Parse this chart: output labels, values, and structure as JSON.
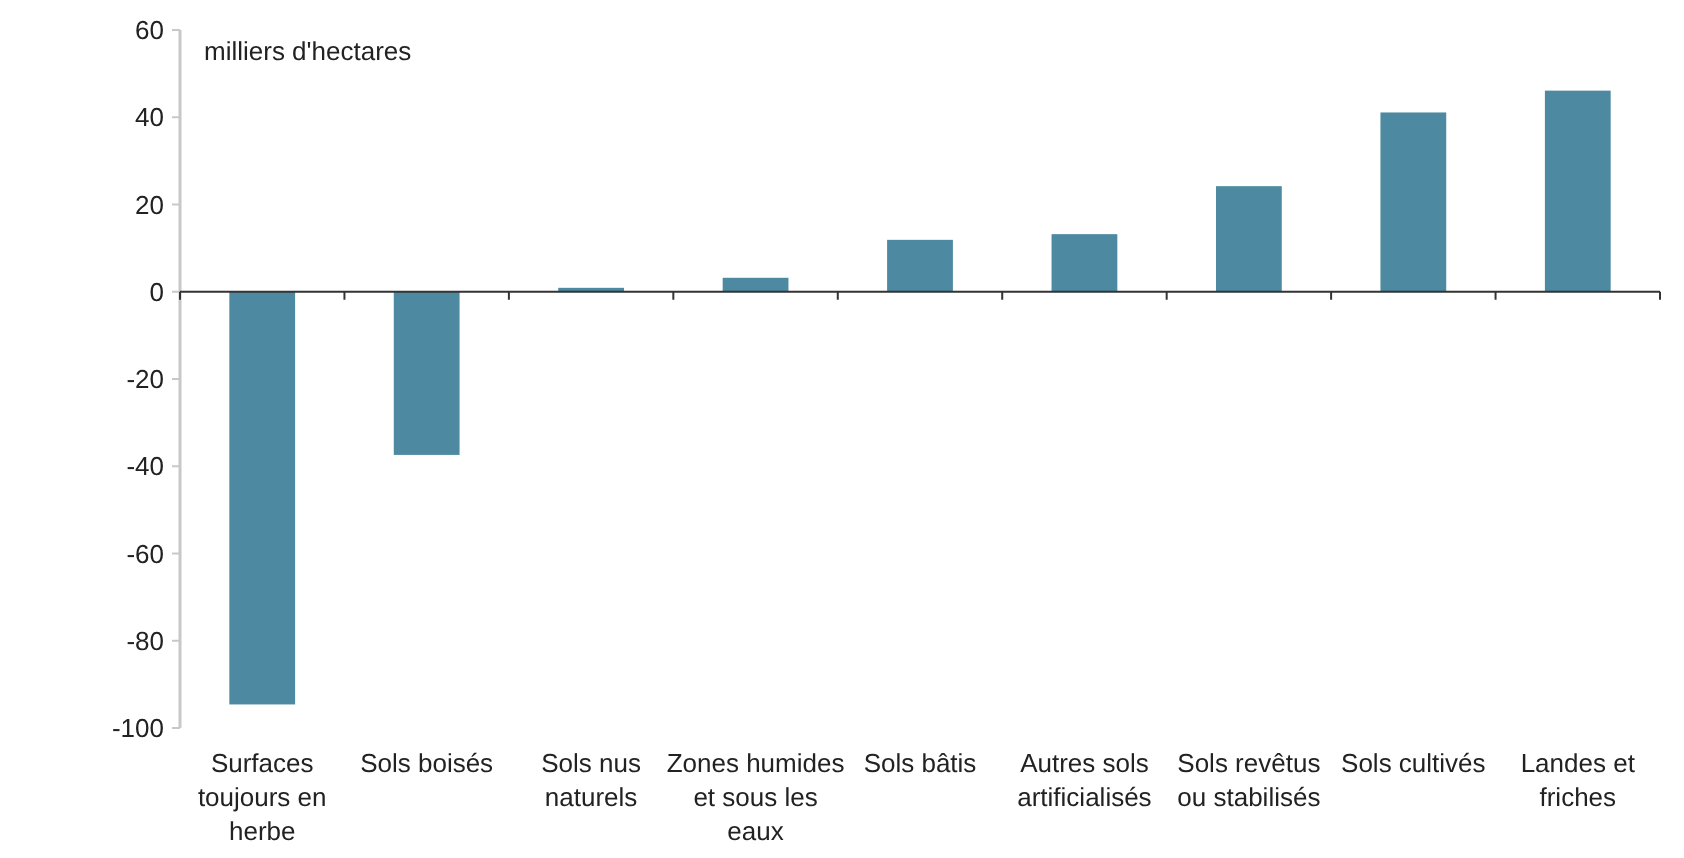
{
  "chart_data": {
    "type": "bar",
    "ylabel": "milliers d'hectares",
    "categories": [
      "Surfaces toujours en herbe",
      "Sols boisés",
      "Sols nus naturels",
      "Zones humides et sous les eaux",
      "Sols bâtis",
      "Autres sols artificialisés",
      "Sols revêtus ou stabilisés",
      "Sols cultivés",
      "Landes et friches"
    ],
    "values": [
      -94.6,
      -37.4,
      0.9,
      3.2,
      11.9,
      13.2,
      24.2,
      41.1,
      46.1
    ],
    "color": "#4d89a1",
    "ylim": [
      -100,
      60
    ],
    "yticks": [
      -100,
      -80,
      -60,
      -40,
      -20,
      0,
      20,
      40,
      60
    ]
  }
}
